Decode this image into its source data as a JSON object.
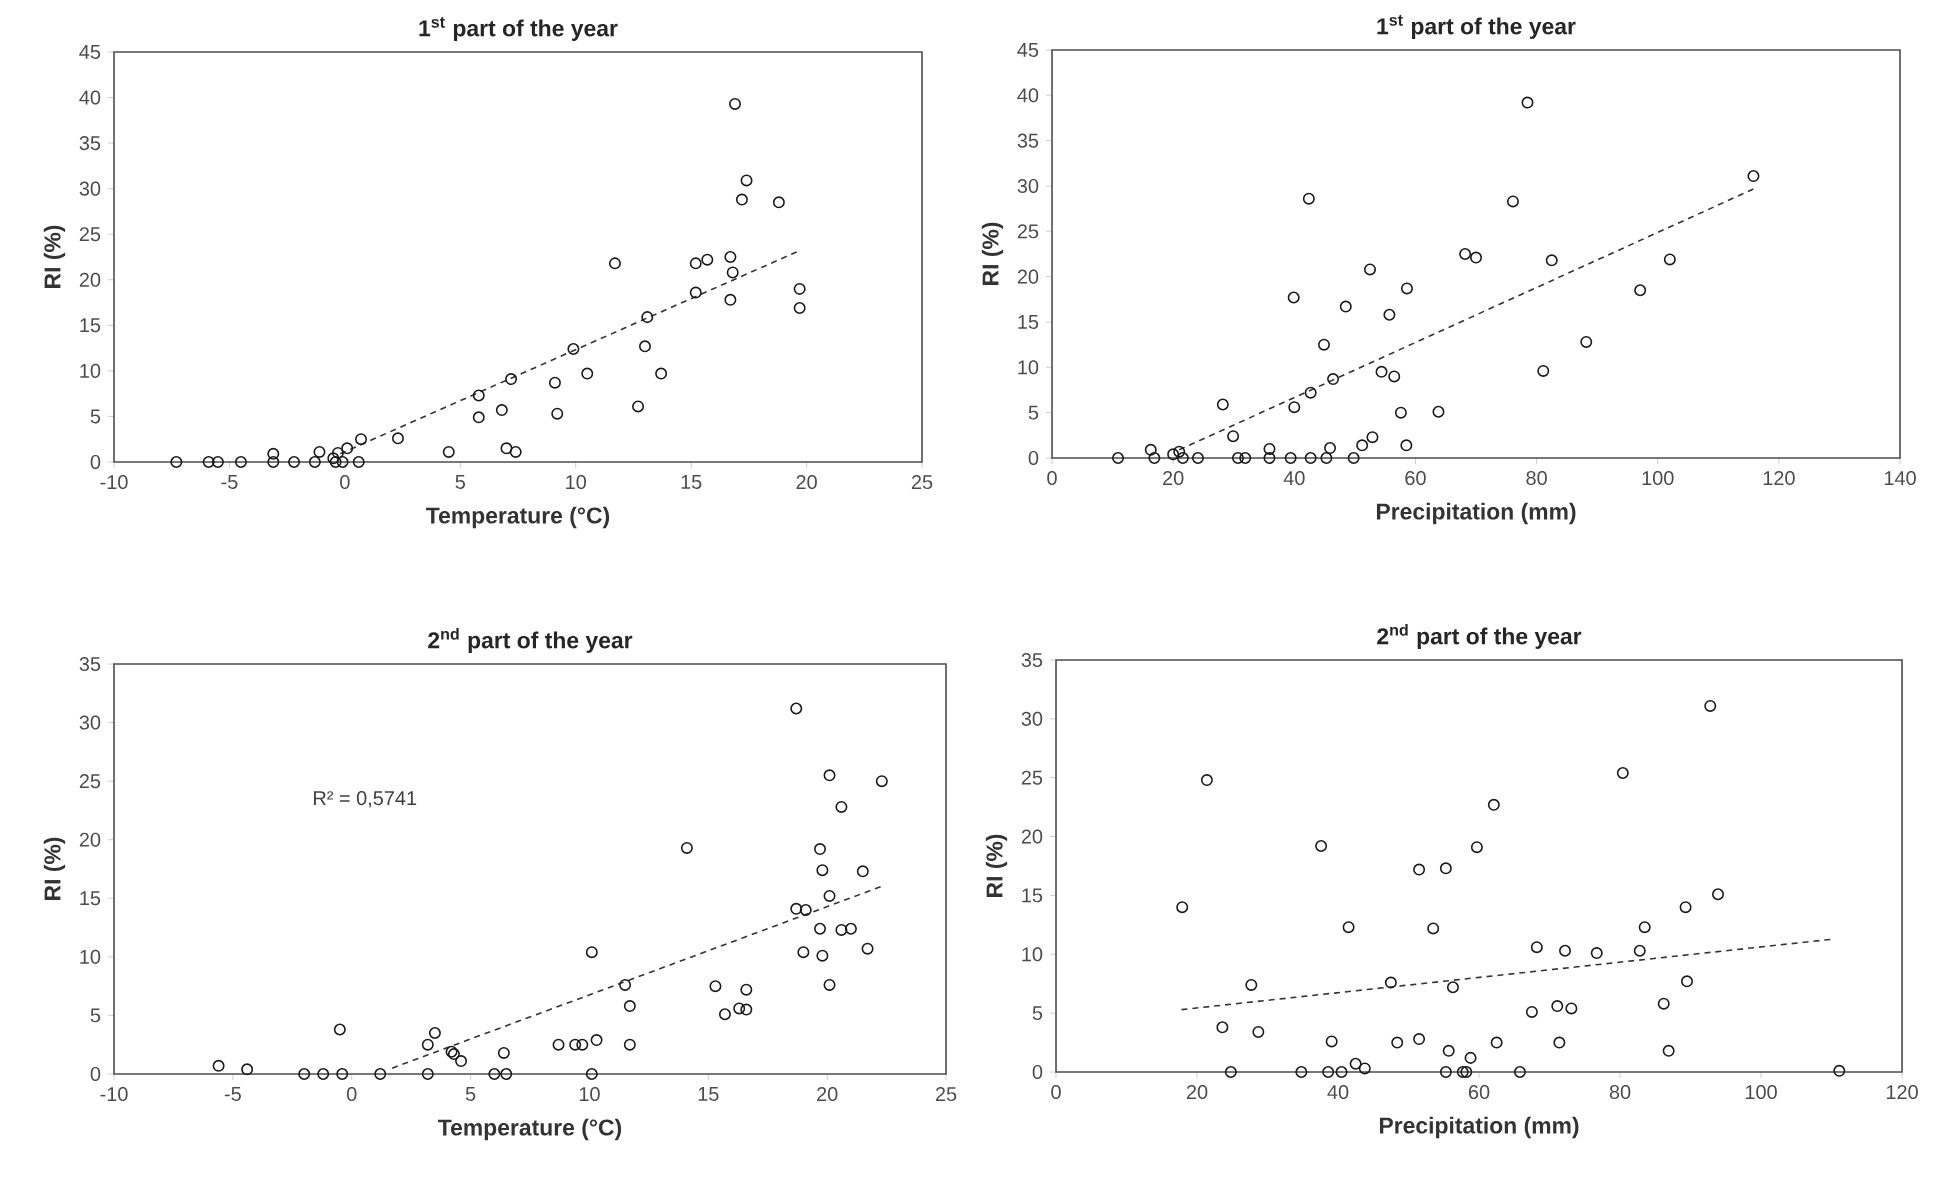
{
  "chart_data": [
    {
      "type": "scatter",
      "title": "1$^{st}$ part of the year",
      "xlabel": "Temperature (°C)",
      "ylabel": "RI (%)",
      "xlim": [
        -10,
        25
      ],
      "ylim": [
        0,
        45
      ],
      "xticks": [
        -10,
        -5,
        0,
        5,
        10,
        15,
        20,
        25
      ],
      "yticks": [
        0,
        5,
        10,
        15,
        20,
        25,
        30,
        35,
        40,
        45
      ],
      "series": [
        {
          "color": "#1a1a1a",
          "marker": "circle",
          "x": [
            -7.3,
            -5.9,
            -5.5,
            -4.5,
            -3.1,
            -3.1,
            -2.2,
            -1.3,
            -1.1,
            -0.5,
            -0.4,
            -0.3,
            -0.1,
            0.1,
            0.6,
            0.7,
            2.3,
            4.5,
            5.8,
            5.8,
            6.8,
            7.0,
            7.4,
            7.2,
            9.1,
            9.2,
            9.9,
            10.5,
            11.7,
            12.7,
            13.0,
            13.1,
            13.7,
            15.2,
            15.2,
            15.7,
            16.7,
            16.7,
            16.8,
            16.9,
            17.2,
            17.4,
            18.8,
            19.7,
            19.7
          ],
          "values": [
            0,
            0,
            0,
            0,
            0.9,
            0,
            0,
            0,
            1.1,
            0.4,
            0,
            1.0,
            0,
            1.5,
            0,
            2.5,
            2.6,
            1.1,
            7.3,
            4.9,
            5.7,
            1.5,
            1.1,
            9.1,
            8.7,
            5.3,
            12.4,
            9.7,
            21.8,
            6.1,
            12.7,
            15.9,
            9.7,
            21.8,
            18.6,
            22.2,
            22.5,
            17.8,
            20.8,
            39.3,
            28.8,
            30.9,
            28.5,
            19.0,
            16.9
          ]
        },
        {
          "type": "line",
          "color": "#333333",
          "marker": "none",
          "line_style": "dashed",
          "x": [
            -0.2,
            19.7
          ],
          "values": [
            0.9,
            23.2
          ]
        }
      ]
    },
    {
      "type": "scatter",
      "title": "1$^{st}$ part of the year",
      "xlabel": "Precipitation (mm)",
      "ylabel": "RI (%)",
      "xlim": [
        0,
        140
      ],
      "ylim": [
        0,
        45
      ],
      "xticks": [
        0,
        20,
        40,
        60,
        80,
        100,
        120,
        140
      ],
      "yticks": [
        0,
        5,
        10,
        15,
        20,
        25,
        30,
        35,
        40,
        45
      ],
      "series": [
        {
          "color": "#1a1a1a",
          "marker": "circle",
          "x": [
            10.9,
            16.3,
            16.9,
            20.0,
            21.0,
            21.6,
            24.1,
            28.2,
            29.9,
            30.7,
            31.9,
            35.9,
            35.9,
            39.4,
            39.9,
            40.0,
            42.4,
            42.7,
            42.7,
            44.9,
            45.3,
            45.9,
            46.4,
            48.5,
            49.8,
            51.2,
            52.5,
            52.9,
            54.4,
            55.7,
            56.5,
            57.6,
            58.6,
            58.5,
            63.8,
            68.2,
            70.0,
            76.1,
            78.5,
            81.1,
            82.5,
            88.2,
            97.1,
            102.0,
            115.8
          ],
          "values": [
            0,
            0.9,
            0,
            0.4,
            0.7,
            0,
            0,
            5.9,
            2.4,
            0,
            0,
            1.0,
            0,
            0,
            17.7,
            5.6,
            28.6,
            7.2,
            0,
            12.5,
            0,
            1.1,
            8.7,
            16.7,
            0,
            1.4,
            20.8,
            2.3,
            9.5,
            15.8,
            9.0,
            5.0,
            18.7,
            1.4,
            5.1,
            22.5,
            22.1,
            28.3,
            39.2,
            9.6,
            21.8,
            12.8,
            18.5,
            21.9,
            31.1
          ]
        },
        {
          "type": "line",
          "color": "#333333",
          "marker": "none",
          "line_style": "dashed",
          "x": [
            21,
            115.9
          ],
          "values": [
            0.9,
            29.7
          ]
        }
      ]
    },
    {
      "type": "scatter",
      "title": "2$^{nd}$ part of the year",
      "xlabel": "Temperature (°C)",
      "ylabel": "RI (%)",
      "xlim": [
        -10,
        25
      ],
      "ylim": [
        0,
        35
      ],
      "xticks": [
        -10,
        -5,
        0,
        5,
        10,
        15,
        20,
        25
      ],
      "yticks": [
        0,
        5,
        10,
        15,
        20,
        25,
        30,
        35
      ],
      "annotations": [
        "R² = 0,5741"
      ],
      "series": [
        {
          "color": "#1a1a1a",
          "marker": "circle",
          "x": [
            -5.6,
            -4.4,
            -2.0,
            -1.2,
            -0.4,
            -0.5,
            1.2,
            3.2,
            3.2,
            3.5,
            4.2,
            4.3,
            4.6,
            6.0,
            6.5,
            6.4,
            8.7,
            9.4,
            9.7,
            10.3,
            10.1,
            10.1,
            11.5,
            11.7,
            11.7,
            14.1,
            15.3,
            15.7,
            16.3,
            16.6,
            16.6,
            18.7,
            18.7,
            19.1,
            19.0,
            19.7,
            19.8,
            20.1,
            20.1,
            19.7,
            19.8,
            20.1,
            20.6,
            20.6,
            21.0,
            21.5,
            21.7,
            22.3
          ],
          "values": [
            0.7,
            0.4,
            0,
            0,
            0,
            3.8,
            0,
            0,
            2.5,
            3.5,
            1.9,
            1.7,
            1.1,
            0,
            0,
            1.8,
            2.5,
            2.5,
            2.5,
            2.9,
            10.4,
            0,
            7.6,
            5.8,
            2.5,
            19.3,
            7.5,
            5.1,
            5.6,
            5.5,
            7.2,
            31.2,
            14.1,
            14.0,
            10.4,
            19.2,
            17.4,
            25.5,
            15.2,
            12.4,
            10.1,
            7.6,
            22.8,
            12.3,
            12.4,
            17.3,
            10.7,
            25.0
          ]
        },
        {
          "type": "line",
          "color": "#333333",
          "marker": "none",
          "line_style": "dashed",
          "x": [
            1.7,
            22.4
          ],
          "values": [
            0.5,
            16.1
          ]
        }
      ]
    },
    {
      "type": "scatter",
      "title": "2$^{nd}$ part of the year",
      "xlabel": "Precipitation (mm)",
      "ylabel": "RI (%)",
      "xlim": [
        0,
        120
      ],
      "ylim": [
        0,
        35
      ],
      "xticks": [
        0,
        20,
        40,
        60,
        80,
        100,
        120
      ],
      "yticks": [
        0,
        5,
        10,
        15,
        20,
        25,
        30,
        35
      ],
      "series": [
        {
          "color": "#1a1a1a",
          "marker": "circle",
          "x": [
            17.9,
            21.4,
            23.6,
            24.8,
            27.7,
            28.7,
            34.8,
            37.6,
            38.6,
            39.1,
            40.5,
            41.5,
            42.5,
            43.8,
            47.5,
            48.4,
            51.5,
            51.5,
            53.5,
            55.3,
            55.3,
            55.7,
            56.3,
            57.7,
            58.2,
            58.8,
            59.7,
            62.1,
            62.5,
            65.8,
            67.5,
            68.2,
            71.1,
            71.4,
            72.2,
            73.1,
            76.7,
            80.4,
            82.8,
            83.5,
            86.2,
            86.9,
            89.3,
            89.5,
            92.8,
            93.9,
            111.1
          ],
          "values": [
            14.0,
            24.8,
            3.8,
            0,
            7.4,
            3.4,
            0,
            19.2,
            0,
            2.6,
            0,
            12.3,
            0.7,
            0.3,
            7.6,
            2.5,
            17.2,
            2.8,
            12.2,
            17.3,
            0,
            1.8,
            7.2,
            0,
            0,
            1.2,
            19.1,
            22.7,
            2.5,
            0,
            5.1,
            10.6,
            5.6,
            2.5,
            10.3,
            5.4,
            10.1,
            25.4,
            10.3,
            12.3,
            5.8,
            1.8,
            14.0,
            7.7,
            31.1,
            15.1,
            0.1
          ]
        },
        {
          "type": "line",
          "color": "#333333",
          "marker": "none",
          "line_style": "dashed",
          "x": [
            17.8,
            110.4
          ],
          "values": [
            5.3,
            11.3
          ]
        }
      ]
    }
  ]
}
